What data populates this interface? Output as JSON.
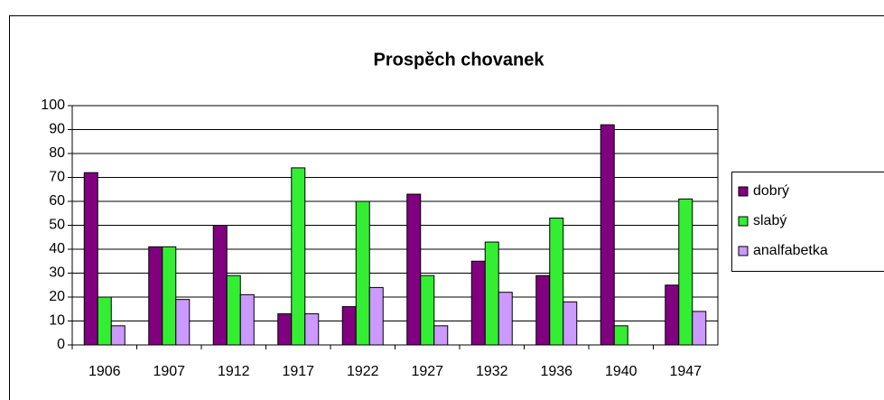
{
  "chart_data": {
    "type": "bar",
    "title": "Prospěch chovanek",
    "categories": [
      "1906",
      "1907",
      "1912",
      "1917",
      "1922",
      "1927",
      "1932",
      "1936",
      "1940",
      "1947"
    ],
    "series": [
      {
        "name": "dobrý",
        "color": "#800080",
        "values": [
          72,
          41,
          50,
          13,
          16,
          63,
          35,
          29,
          92,
          25
        ]
      },
      {
        "name": "slabý",
        "color": "#33ee33",
        "values": [
          20,
          41,
          29,
          74,
          60,
          29,
          43,
          53,
          8,
          61
        ]
      },
      {
        "name": "analfabetka",
        "color": "#cc99ff",
        "values": [
          8,
          19,
          21,
          13,
          24,
          8,
          22,
          18,
          0,
          14
        ]
      }
    ],
    "ylim": [
      0,
      100
    ],
    "yticks": [
      0,
      10,
      20,
      30,
      40,
      50,
      60,
      70,
      80,
      90,
      100
    ],
    "grid": true,
    "legend": "right"
  }
}
